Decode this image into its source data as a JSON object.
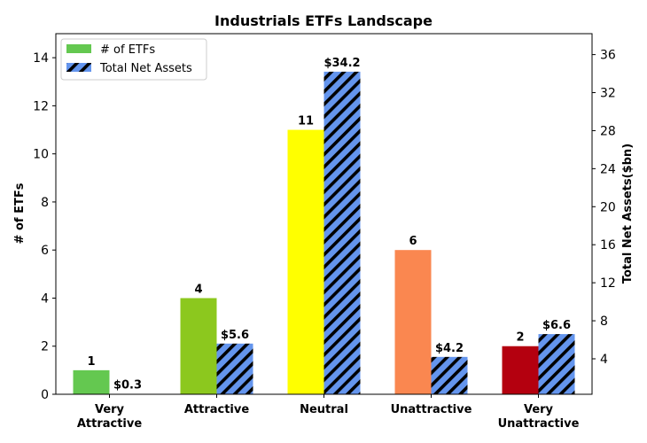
{
  "chart_data": {
    "type": "bar",
    "title": "Industrials ETFs Landscape",
    "categories": [
      "Very Attractive",
      "Attractive",
      "Neutral",
      "Unattractive",
      "Very Unattractive"
    ],
    "category_lines": [
      [
        "Very",
        "Attractive"
      ],
      [
        "Attractive"
      ],
      [
        "Neutral"
      ],
      [
        "Unattractive"
      ],
      [
        "Very",
        "Unattractive"
      ]
    ],
    "ylabel_left": "# of ETFs",
    "ylabel_right": "Total Net Assets($bn)",
    "ylim_left": [
      0,
      15
    ],
    "ylim_right": [
      0.27,
      38.2
    ],
    "yticks_left": [
      0,
      2,
      4,
      6,
      8,
      10,
      12,
      14
    ],
    "yticks_right": [
      4,
      8,
      12,
      16,
      20,
      24,
      28,
      32,
      36
    ],
    "legend_position": "top-left",
    "series": [
      {
        "name": "# of ETFs",
        "axis": "left",
        "values": [
          1,
          4,
          11,
          6,
          2
        ],
        "labels": [
          "1",
          "4",
          "11",
          "6",
          "2"
        ],
        "colors": [
          "#64c850",
          "#8cc81e",
          "#ffff00",
          "#fa8750",
          "#b4000f"
        ],
        "legend_color": "#64c850"
      },
      {
        "name": "Total Net Assets",
        "axis": "right",
        "values": [
          0.3,
          5.6,
          34.2,
          4.2,
          6.6
        ],
        "labels": [
          "$0.3",
          "$5.6",
          "$34.2",
          "$4.2",
          "$6.6"
        ],
        "color": "#6495ed",
        "hatch": "diagonal"
      }
    ]
  }
}
